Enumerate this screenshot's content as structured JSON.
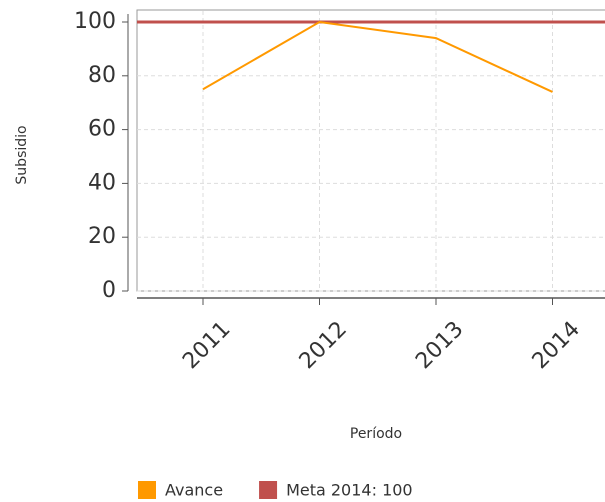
{
  "chart_data": {
    "type": "line",
    "x_label": "Período",
    "y_label": "Subsidio",
    "categories": [
      "2011",
      "2012",
      "2013",
      "2014"
    ],
    "series": [
      {
        "name": "Avance",
        "color": "#ff9900",
        "values": [
          75,
          100,
          94,
          74
        ]
      }
    ],
    "reference_line": {
      "name": "Meta 2014: 100",
      "color": "#c0504d",
      "value": 100
    },
    "ylim": [
      0,
      100
    ],
    "yticks": [
      0,
      20,
      40,
      60,
      80,
      100
    ],
    "grid": true
  }
}
